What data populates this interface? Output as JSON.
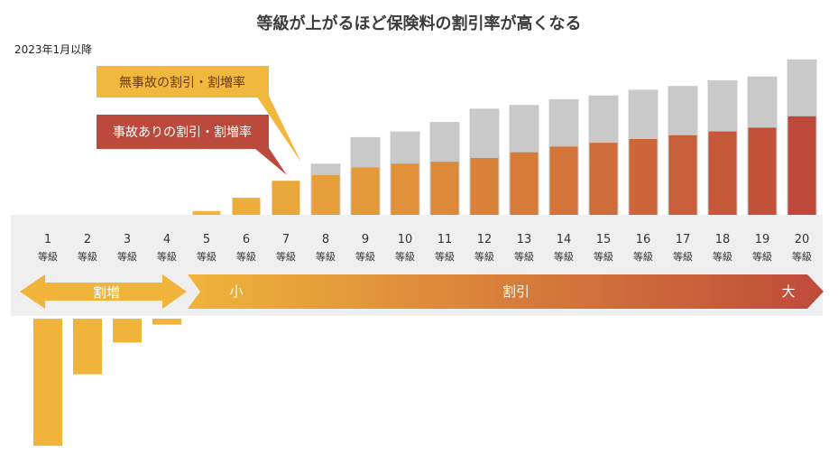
{
  "title": "等級が上がるほど保険料の割引率が高くなる",
  "date_note": "2023年1月以降",
  "grade_unit": "等級",
  "callouts": {
    "no_accident": "無事故の割引・割増率",
    "accident": "事故ありの割引・割増率"
  },
  "arrows": {
    "surcharge": "割増",
    "discount": "割引",
    "discount_small": "小",
    "discount_large": "大"
  },
  "colors": {
    "bar_yellow": "#f0b43a",
    "bar_red": "#bf4a3a",
    "bar_gray": "#c9c9c9",
    "band_bg": "#efefef",
    "callout_no_accident": "#f1b83e",
    "callout_accident": "#bb4a3c"
  },
  "chart_data": {
    "type": "bar",
    "categories": [
      "1",
      "2",
      "3",
      "4",
      "5",
      "6",
      "7",
      "8",
      "9",
      "10",
      "11",
      "12",
      "13",
      "14",
      "15",
      "16",
      "17",
      "18",
      "19",
      "20"
    ],
    "series": [
      {
        "name": "無事故の割引・割増率",
        "values": [
          -64,
          -28,
          -12,
          -3,
          2,
          9,
          18,
          27,
          41,
          44,
          49,
          56,
          58,
          61,
          63,
          66,
          68,
          71,
          73,
          82
        ]
      },
      {
        "name": "事故ありの割引・割増率",
        "values": [
          -64,
          -28,
          -12,
          -3,
          2,
          9,
          18,
          21,
          25,
          27,
          28,
          30,
          33,
          36,
          38,
          40,
          42,
          44,
          46,
          52
        ]
      }
    ],
    "xlabel": "",
    "ylabel": ""
  }
}
